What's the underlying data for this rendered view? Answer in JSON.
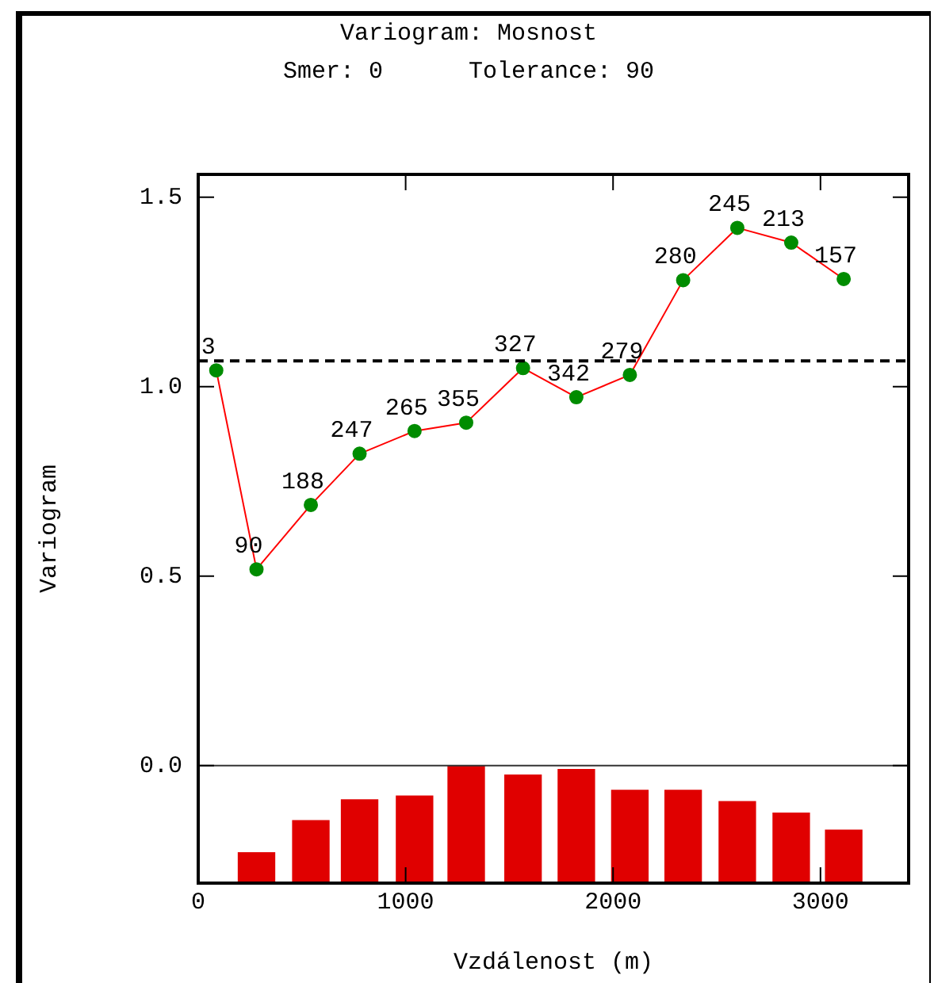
{
  "chart_data": {
    "type": "line",
    "title": "Variogram: Mosnost",
    "subtitle": "Smer: 0      Tolerance: 90",
    "xlabel": "Vzdálenost (m)",
    "ylabel": "Variogram",
    "xlim": [
      0,
      3425
    ],
    "xticks": [
      0,
      1000,
      2000,
      3000
    ],
    "ylim": [
      -0.31,
      1.56
    ],
    "yticks": [
      {
        "value": 0,
        "label": "0.0"
      },
      {
        "value": 0.5,
        "label": "0.5"
      },
      {
        "value": 1,
        "label": "1.0"
      },
      {
        "value": 1.5,
        "label": "1.5"
      }
    ],
    "grid": false,
    "legend": false,
    "marker": "circle",
    "line_style": "solid",
    "series": [
      {
        "type": "bar",
        "color": "#e00000",
        "x": [
          281,
          543,
          778,
          1043,
          1292,
          1566,
          1823,
          2081,
          2338,
          2599,
          2859,
          3112
        ],
        "base": [
          -0.31,
          -0.31,
          -0.31,
          -0.31,
          -0.31,
          -0.31,
          -0.31,
          -0.31,
          -0.31,
          -0.31,
          -0.31,
          -0.31
        ],
        "values": [
          0.08,
          0.165,
          0.22,
          0.23,
          0.31,
          0.285,
          0.3,
          0.245,
          0.245,
          0.215,
          0.185,
          0.14
        ]
      },
      {
        "color": "#ff0000",
        "colors": [
          "#008c00",
          "#008c00",
          "#008c00",
          "#008c00",
          "#008c00",
          "#008c00",
          "#008c00",
          "#008c00",
          "#008c00",
          "#008c00",
          "#008c00",
          "#008c00",
          "#008c00"
        ],
        "x": [
          87,
          281,
          543,
          778,
          1043,
          1292,
          1566,
          1823,
          2081,
          2338,
          2599,
          2859,
          3112
        ],
        "values": [
          1.043,
          0.518,
          0.688,
          0.823,
          0.883,
          0.905,
          1.049,
          0.972,
          1.031,
          1.281,
          1.419,
          1.38,
          1.284
        ]
      }
    ],
    "annotations": [
      {
        "text": "3",
        "x": 87,
        "y": 1.043
      },
      {
        "text": "90",
        "x": 281,
        "y": 0.518
      },
      {
        "text": "188",
        "x": 543,
        "y": 0.688
      },
      {
        "text": "247",
        "x": 778,
        "y": 0.823
      },
      {
        "text": "265",
        "x": 1043,
        "y": 0.883
      },
      {
        "text": "355",
        "x": 1292,
        "y": 0.905
      },
      {
        "text": "327",
        "x": 1566,
        "y": 1.049
      },
      {
        "text": "342",
        "x": 1823,
        "y": 0.972
      },
      {
        "text": "279",
        "x": 2081,
        "y": 1.031
      },
      {
        "text": "280",
        "x": 2338,
        "y": 1.281
      },
      {
        "text": "245",
        "x": 2599,
        "y": 1.419
      },
      {
        "text": "213",
        "x": 2859,
        "y": 1.38
      },
      {
        "text": "157",
        "x": 3112,
        "y": 1.284
      }
    ],
    "ref_lines": [
      {
        "axis": "y",
        "value": 1.068,
        "color": "#000000",
        "line_style": "dashed"
      },
      {
        "axis": "y",
        "value": 0,
        "color": "#333333",
        "line_style": "solid"
      }
    ]
  }
}
